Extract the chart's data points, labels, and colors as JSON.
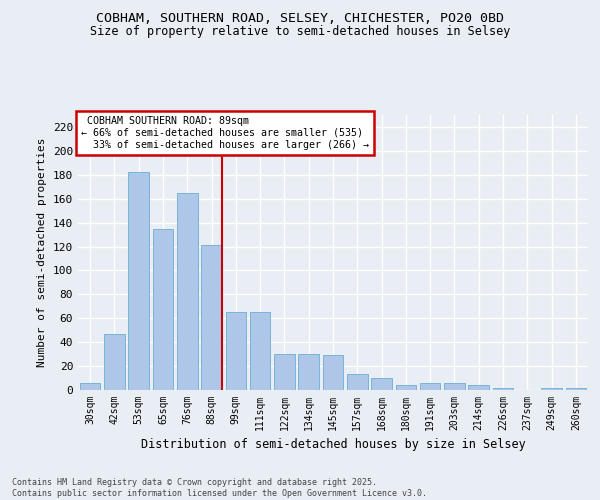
{
  "title_line1": "COBHAM, SOUTHERN ROAD, SELSEY, CHICHESTER, PO20 0BD",
  "title_line2": "Size of property relative to semi-detached houses in Selsey",
  "xlabel": "Distribution of semi-detached houses by size in Selsey",
  "ylabel": "Number of semi-detached properties",
  "categories": [
    "30sqm",
    "42sqm",
    "53sqm",
    "65sqm",
    "76sqm",
    "88sqm",
    "99sqm",
    "111sqm",
    "122sqm",
    "134sqm",
    "145sqm",
    "157sqm",
    "168sqm",
    "180sqm",
    "191sqm",
    "203sqm",
    "214sqm",
    "226sqm",
    "237sqm",
    "249sqm",
    "260sqm"
  ],
  "values": [
    6,
    47,
    182,
    135,
    165,
    121,
    65,
    65,
    30,
    30,
    29,
    13,
    10,
    4,
    6,
    6,
    4,
    2,
    0,
    2,
    2
  ],
  "bar_color": "#aec6e8",
  "bar_edge_color": "#6baed6",
  "vline_index": 5,
  "vline_label": "COBHAM SOUTHERN ROAD: 89sqm",
  "pct_smaller": 66,
  "count_smaller": 535,
  "pct_larger": 33,
  "count_larger": 266,
  "ylim": [
    0,
    230
  ],
  "yticks": [
    0,
    20,
    40,
    60,
    80,
    100,
    120,
    140,
    160,
    180,
    200,
    220
  ],
  "annotation_box_color": "#cc0000",
  "footer": "Contains HM Land Registry data © Crown copyright and database right 2025.\nContains public sector information licensed under the Open Government Licence v3.0.",
  "background_color": "#e8eef4",
  "grid_color": "#ffffff"
}
